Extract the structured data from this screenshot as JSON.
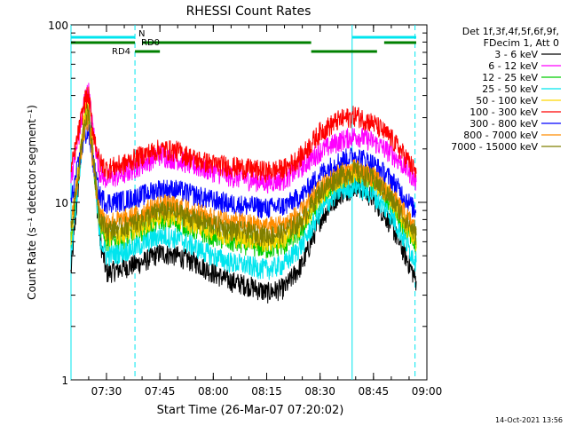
{
  "chart_data": {
    "type": "line",
    "title": "RHESSI Count Rates",
    "ylabel": "Count Rate (s⁻¹ detector segment⁻¹)",
    "xlabel": "Start Time (26-Mar-07 07:20:02)",
    "yscale": "log",
    "ylim": [
      1,
      100
    ],
    "xlim": [
      "07:20:02",
      "09:00:00"
    ],
    "x_ticks": [
      "07:30",
      "07:45",
      "08:00",
      "08:15",
      "08:30",
      "08:45",
      "09:00"
    ],
    "y_ticks": [
      "1",
      "10",
      "100"
    ],
    "legend_header": [
      "Det 1f,3f,4f,5f,6f,9f,",
      "FDecim 1, Att 0"
    ],
    "legend_position": "top-right",
    "x": [
      "07:20",
      "07:22",
      "07:24",
      "07:25",
      "07:26",
      "07:28",
      "07:30",
      "07:35",
      "07:40",
      "07:45",
      "07:50",
      "07:55",
      "08:00",
      "08:05",
      "08:10",
      "08:15",
      "08:20",
      "08:25",
      "08:30",
      "08:35",
      "08:40",
      "08:45",
      "08:50",
      "08:55",
      "08:57"
    ],
    "series": [
      {
        "name": "3 - 6 keV",
        "color": "#000000",
        "values": [
          4.0,
          12,
          32,
          34,
          22,
          6.5,
          4.0,
          4.3,
          4.6,
          5.2,
          5.0,
          4.6,
          4.0,
          3.6,
          3.4,
          3.1,
          3.3,
          4.5,
          8.0,
          11.0,
          12.5,
          10.5,
          7.5,
          4.5,
          3.6
        ]
      },
      {
        "name": "6 - 12 keV",
        "color": "#ff00ff",
        "values": [
          14.0,
          22,
          40,
          42,
          28,
          15,
          13.5,
          14.5,
          16.5,
          18.5,
          17.5,
          16.0,
          15.0,
          14.0,
          13.5,
          13.0,
          13.5,
          16.0,
          19.5,
          22.0,
          24.0,
          22.0,
          19.0,
          15.0,
          13.0
        ]
      },
      {
        "name": "12 - 25 keV",
        "color": "#00cc00",
        "values": [
          6.0,
          14,
          30,
          32,
          20,
          7.5,
          6.0,
          6.3,
          7.0,
          8.0,
          7.8,
          7.0,
          6.5,
          6.0,
          5.8,
          5.5,
          5.8,
          7.0,
          10.5,
          13.0,
          14.5,
          13.0,
          10.0,
          6.5,
          5.5
        ]
      },
      {
        "name": "25 - 50 keV",
        "color": "#00e5ee",
        "values": [
          5.0,
          13,
          30,
          32,
          20,
          6.5,
          5.0,
          5.3,
          5.8,
          6.5,
          6.3,
          5.6,
          5.0,
          4.6,
          4.4,
          4.2,
          4.5,
          5.8,
          8.8,
          11.5,
          12.5,
          11.0,
          8.5,
          5.5,
          4.6
        ]
      },
      {
        "name": "50 - 100 keV",
        "color": "#ffd700",
        "values": [
          6.5,
          15,
          32,
          34,
          21,
          8.0,
          6.5,
          6.8,
          7.5,
          8.5,
          8.3,
          7.6,
          7.0,
          6.5,
          6.3,
          6.0,
          6.3,
          7.6,
          11.0,
          13.5,
          15.0,
          13.5,
          10.5,
          7.0,
          6.0
        ]
      },
      {
        "name": "100 - 300 keV",
        "color": "#ff0000",
        "values": [
          15.0,
          24,
          38,
          40,
          27,
          17,
          15.5,
          16.5,
          18.5,
          20.0,
          19.5,
          17.5,
          16.5,
          16.0,
          15.5,
          15.0,
          15.5,
          18.5,
          25.0,
          29.0,
          31.0,
          28.0,
          23.0,
          17.0,
          14.5
        ]
      },
      {
        "name": "300 - 800 keV",
        "color": "#0000ff",
        "values": [
          10.0,
          16,
          24,
          25,
          18,
          11.0,
          10.0,
          10.3,
          11.0,
          12.0,
          11.8,
          11.0,
          10.3,
          9.8,
          9.6,
          9.3,
          9.6,
          11.0,
          14.5,
          17.0,
          18.5,
          16.5,
          13.5,
          10.0,
          8.8
        ]
      },
      {
        "name": "800 - 7000 keV",
        "color": "#ff8c00",
        "values": [
          8.0,
          14,
          28,
          30,
          18,
          9.0,
          7.8,
          8.0,
          8.8,
          9.8,
          9.5,
          8.8,
          8.2,
          7.8,
          7.6,
          7.3,
          7.6,
          8.9,
          12.0,
          14.5,
          15.5,
          14.0,
          11.0,
          8.0,
          7.0
        ]
      },
      {
        "name": "7000 - 15000 keV",
        "color": "#7f7f00",
        "values": [
          7.0,
          14,
          30,
          33,
          20,
          8.5,
          7.0,
          7.3,
          8.0,
          9.0,
          8.8,
          8.0,
          7.5,
          7.0,
          6.8,
          6.5,
          6.8,
          8.0,
          11.5,
          14.0,
          15.0,
          13.5,
          10.5,
          7.5,
          6.5
        ]
      }
    ],
    "vertical_markers": [
      "07:20:02",
      "07:38:00",
      "08:39:00",
      "08:56:40"
    ],
    "status_bars": [
      {
        "label": "N",
        "color": "#00e5ee",
        "level": 1,
        "segments": [
          [
            "07:20:02",
            "07:38:00"
          ],
          [
            "08:39:00",
            "08:57:00"
          ]
        ]
      },
      {
        "label": "RD0",
        "color": "#008000",
        "level": 2,
        "segments": [
          [
            "07:20:02",
            "07:38:00"
          ],
          [
            "07:40:00",
            "08:27:30"
          ],
          [
            "08:48:00",
            "08:57:00"
          ]
        ]
      },
      {
        "label": "RD4",
        "color": "#008000",
        "level": 3,
        "segments": [
          [
            "07:38:00",
            "07:45:00"
          ],
          [
            "08:27:30",
            "08:46:00"
          ]
        ]
      }
    ]
  },
  "footer": {
    "timestamp": "14-Oct-2021 13:56"
  }
}
